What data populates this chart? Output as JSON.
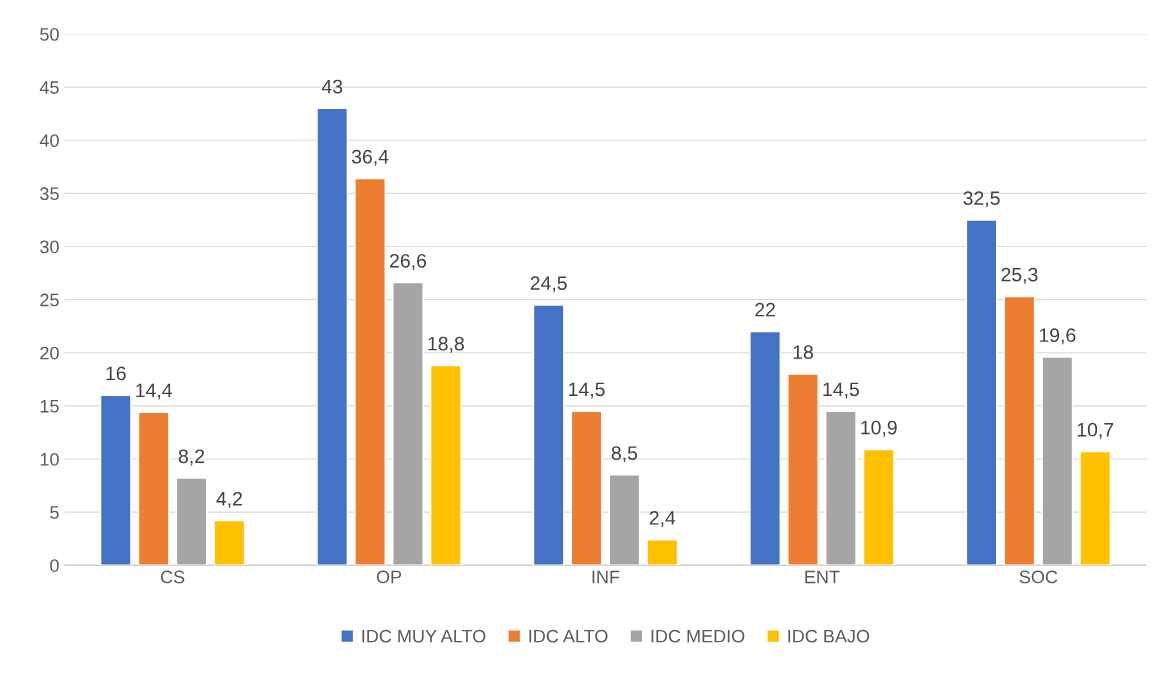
{
  "chart_data": {
    "type": "bar",
    "categories": [
      "CS",
      "OP",
      "INF",
      "ENT",
      "SOC"
    ],
    "series": [
      {
        "name": "IDC MUY ALTO",
        "color": "#4472c4",
        "values": [
          16,
          43,
          24.5,
          22,
          32.5
        ],
        "value_labels": [
          "16",
          "43",
          "24,5",
          "22",
          "32,5"
        ]
      },
      {
        "name": "IDC ALTO",
        "color": "#ed7d31",
        "values": [
          14.4,
          36.4,
          14.5,
          18,
          25.3
        ],
        "value_labels": [
          "14,4",
          "36,4",
          "14,5",
          "18",
          "25,3"
        ]
      },
      {
        "name": "IDC MEDIO",
        "color": "#a5a5a5",
        "values": [
          8.2,
          26.6,
          8.5,
          14.5,
          19.6
        ],
        "value_labels": [
          "8,2",
          "26,6",
          "8,5",
          "14,5",
          "19,6"
        ]
      },
      {
        "name": "IDC BAJO",
        "color": "#ffc000",
        "values": [
          4.2,
          18.8,
          2.4,
          10.9,
          10.7
        ],
        "value_labels": [
          "4,2",
          "18,8",
          "2,4",
          "10,9",
          "10,7"
        ]
      }
    ],
    "ylim": [
      0,
      50
    ],
    "yticks": [
      0,
      5,
      10,
      15,
      20,
      25,
      30,
      35,
      40,
      45,
      50
    ],
    "grid": "y",
    "legend": "bottom"
  }
}
